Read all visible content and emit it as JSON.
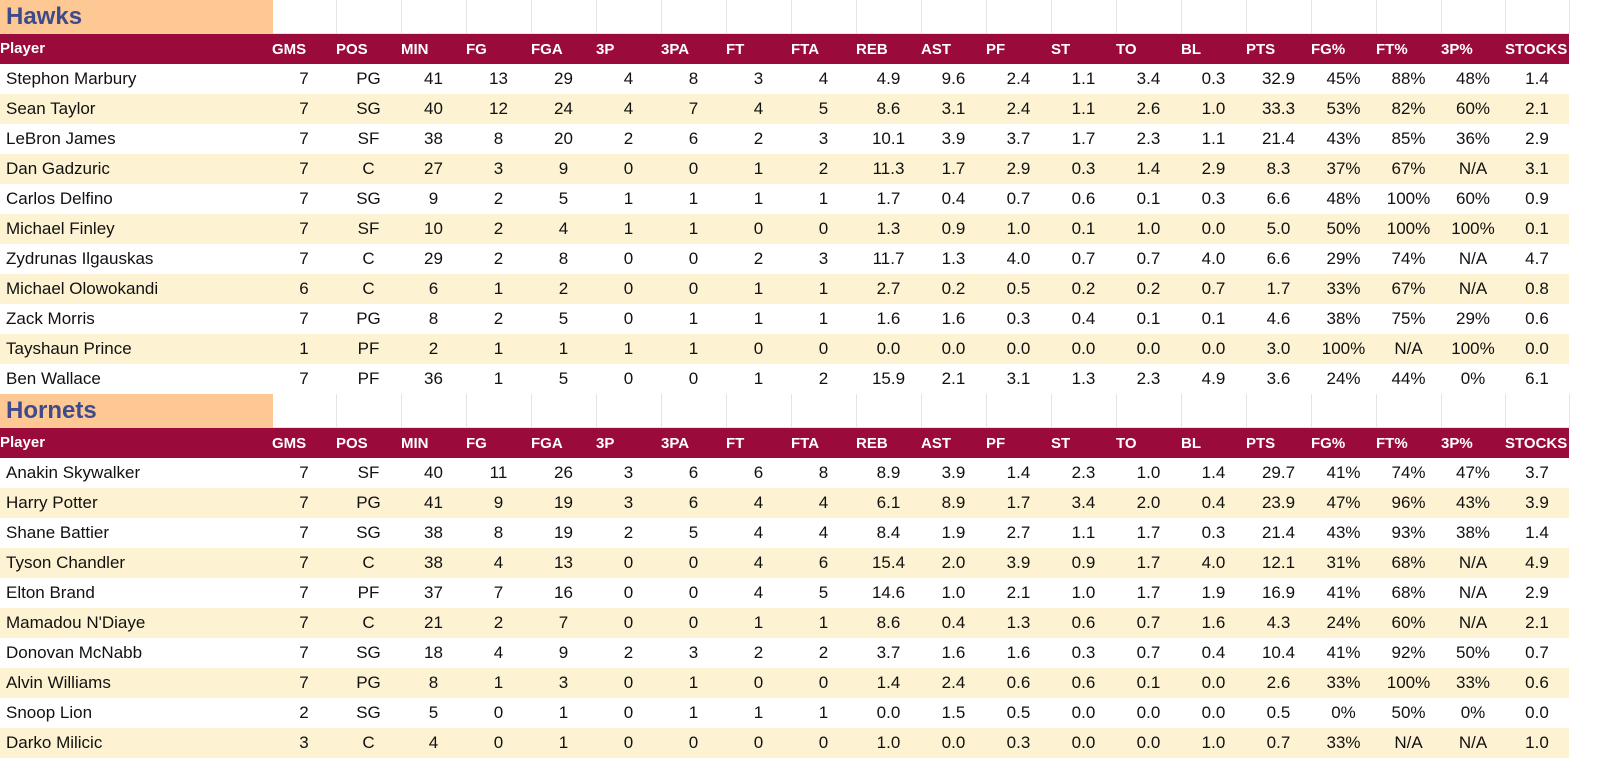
{
  "columns": [
    "Player",
    "GMS",
    "POS",
    "MIN",
    "FG",
    "FGA",
    "3P",
    "3PA",
    "FT",
    "FTA",
    "REB",
    "AST",
    "PF",
    "ST",
    "TO",
    "BL",
    "PTS",
    "FG%",
    "FT%",
    "3P%",
    "STOCKS"
  ],
  "teams": [
    {
      "name": "Hawks",
      "players": [
        [
          "Stephon Marbury",
          "7",
          "PG",
          "41",
          "13",
          "29",
          "4",
          "8",
          "3",
          "4",
          "4.9",
          "9.6",
          "2.4",
          "1.1",
          "3.4",
          "0.3",
          "32.9",
          "45%",
          "88%",
          "48%",
          "1.4"
        ],
        [
          "Sean Taylor",
          "7",
          "SG",
          "40",
          "12",
          "24",
          "4",
          "7",
          "4",
          "5",
          "8.6",
          "3.1",
          "2.4",
          "1.1",
          "2.6",
          "1.0",
          "33.3",
          "53%",
          "82%",
          "60%",
          "2.1"
        ],
        [
          "LeBron James",
          "7",
          "SF",
          "38",
          "8",
          "20",
          "2",
          "6",
          "2",
          "3",
          "10.1",
          "3.9",
          "3.7",
          "1.7",
          "2.3",
          "1.1",
          "21.4",
          "43%",
          "85%",
          "36%",
          "2.9"
        ],
        [
          "Dan Gadzuric",
          "7",
          "C",
          "27",
          "3",
          "9",
          "0",
          "0",
          "1",
          "2",
          "11.3",
          "1.7",
          "2.9",
          "0.3",
          "1.4",
          "2.9",
          "8.3",
          "37%",
          "67%",
          "N/A",
          "3.1"
        ],
        [
          "Carlos Delfino",
          "7",
          "SG",
          "9",
          "2",
          "5",
          "1",
          "1",
          "1",
          "1",
          "1.7",
          "0.4",
          "0.7",
          "0.6",
          "0.1",
          "0.3",
          "6.6",
          "48%",
          "100%",
          "60%",
          "0.9"
        ],
        [
          "Michael Finley",
          "7",
          "SF",
          "10",
          "2",
          "4",
          "1",
          "1",
          "0",
          "0",
          "1.3",
          "0.9",
          "1.0",
          "0.1",
          "1.0",
          "0.0",
          "5.0",
          "50%",
          "100%",
          "100%",
          "0.1"
        ],
        [
          "Zydrunas Ilgauskas",
          "7",
          "C",
          "29",
          "2",
          "8",
          "0",
          "0",
          "2",
          "3",
          "11.7",
          "1.3",
          "4.0",
          "0.7",
          "0.7",
          "4.0",
          "6.6",
          "29%",
          "74%",
          "N/A",
          "4.7"
        ],
        [
          "Michael Olowokandi",
          "6",
          "C",
          "6",
          "1",
          "2",
          "0",
          "0",
          "1",
          "1",
          "2.7",
          "0.2",
          "0.5",
          "0.2",
          "0.2",
          "0.7",
          "1.7",
          "33%",
          "67%",
          "N/A",
          "0.8"
        ],
        [
          "Zack Morris",
          "7",
          "PG",
          "8",
          "2",
          "5",
          "0",
          "1",
          "1",
          "1",
          "1.6",
          "1.6",
          "0.3",
          "0.4",
          "0.1",
          "0.1",
          "4.6",
          "38%",
          "75%",
          "29%",
          "0.6"
        ],
        [
          "Tayshaun Prince",
          "1",
          "PF",
          "2",
          "1",
          "1",
          "1",
          "1",
          "0",
          "0",
          "0.0",
          "0.0",
          "0.0",
          "0.0",
          "0.0",
          "0.0",
          "3.0",
          "100%",
          "N/A",
          "100%",
          "0.0"
        ],
        [
          "Ben Wallace",
          "7",
          "PF",
          "36",
          "1",
          "5",
          "0",
          "0",
          "1",
          "2",
          "15.9",
          "2.1",
          "3.1",
          "1.3",
          "2.3",
          "4.9",
          "3.6",
          "24%",
          "44%",
          "0%",
          "6.1"
        ]
      ]
    },
    {
      "name": "Hornets",
      "players": [
        [
          "Anakin Skywalker",
          "7",
          "SF",
          "40",
          "11",
          "26",
          "3",
          "6",
          "6",
          "8",
          "8.9",
          "3.9",
          "1.4",
          "2.3",
          "1.0",
          "1.4",
          "29.7",
          "41%",
          "74%",
          "47%",
          "3.7"
        ],
        [
          "Harry Potter",
          "7",
          "PG",
          "41",
          "9",
          "19",
          "3",
          "6",
          "4",
          "4",
          "6.1",
          "8.9",
          "1.7",
          "3.4",
          "2.0",
          "0.4",
          "23.9",
          "47%",
          "96%",
          "43%",
          "3.9"
        ],
        [
          "Shane Battier",
          "7",
          "SG",
          "38",
          "8",
          "19",
          "2",
          "5",
          "4",
          "4",
          "8.4",
          "1.9",
          "2.7",
          "1.1",
          "1.7",
          "0.3",
          "21.4",
          "43%",
          "93%",
          "38%",
          "1.4"
        ],
        [
          "Tyson Chandler",
          "7",
          "C",
          "38",
          "4",
          "13",
          "0",
          "0",
          "4",
          "6",
          "15.4",
          "2.0",
          "3.9",
          "0.9",
          "1.7",
          "4.0",
          "12.1",
          "31%",
          "68%",
          "N/A",
          "4.9"
        ],
        [
          "Elton Brand",
          "7",
          "PF",
          "37",
          "7",
          "16",
          "0",
          "0",
          "4",
          "5",
          "14.6",
          "1.0",
          "2.1",
          "1.0",
          "1.7",
          "1.9",
          "16.9",
          "41%",
          "68%",
          "N/A",
          "2.9"
        ],
        [
          "Mamadou N'Diaye",
          "7",
          "C",
          "21",
          "2",
          "7",
          "0",
          "0",
          "1",
          "1",
          "8.6",
          "0.4",
          "1.3",
          "0.6",
          "0.7",
          "1.6",
          "4.3",
          "24%",
          "60%",
          "N/A",
          "2.1"
        ],
        [
          "Donovan McNabb",
          "7",
          "SG",
          "18",
          "4",
          "9",
          "2",
          "3",
          "2",
          "2",
          "3.7",
          "1.6",
          "1.6",
          "0.3",
          "0.7",
          "0.4",
          "10.4",
          "41%",
          "92%",
          "50%",
          "0.7"
        ],
        [
          "Alvin Williams",
          "7",
          "PG",
          "8",
          "1",
          "3",
          "0",
          "1",
          "0",
          "0",
          "1.4",
          "2.4",
          "0.6",
          "0.6",
          "0.1",
          "0.0",
          "2.6",
          "33%",
          "100%",
          "33%",
          "0.6"
        ],
        [
          "Snoop Lion",
          "2",
          "SG",
          "5",
          "0",
          "1",
          "0",
          "1",
          "1",
          "1",
          "0.0",
          "1.5",
          "0.5",
          "0.0",
          "0.0",
          "0.0",
          "0.5",
          "0%",
          "50%",
          "0%",
          "0.0"
        ],
        [
          "Darko Milicic",
          "3",
          "C",
          "4",
          "0",
          "1",
          "0",
          "0",
          "0",
          "0",
          "1.0",
          "0.0",
          "0.3",
          "0.0",
          "0.0",
          "1.0",
          "0.7",
          "33%",
          "N/A",
          "N/A",
          "1.0"
        ]
      ]
    }
  ]
}
